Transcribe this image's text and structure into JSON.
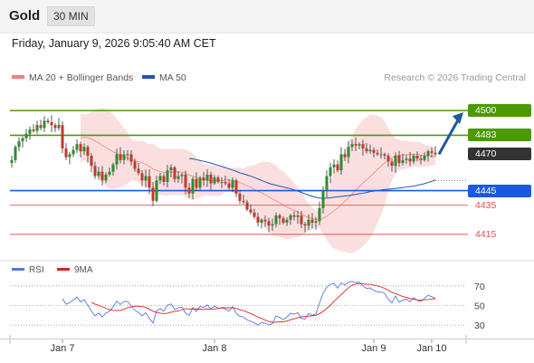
{
  "header": {
    "symbol": "Gold",
    "timeframe": "30 MIN"
  },
  "timestamp": "Friday, January 9, 2026 9:05:40 AM CET",
  "legend": {
    "bollinger_label": "MA 20 + Bollinger Bands",
    "ma50_label": "MA 50",
    "bollinger_color": "#f08080",
    "ma50_color": "#2255aa"
  },
  "attribution": "Research © 2026 Trading Central",
  "rsi_legend": {
    "rsi_label": "RSI",
    "ma_label": "9MA",
    "rsi_color": "#5577dd",
    "ma_color": "#dd2222"
  },
  "colors": {
    "bull": "#2e8b2e",
    "bear": "#c0392b",
    "resistance": "#4a9a00",
    "support": "#1a5adc",
    "minor": "#e05050",
    "target_arrow": "#1f5a99",
    "pivot": "#333333"
  },
  "chart_data": [
    {
      "type": "candlestick",
      "title": "Gold",
      "x_labels": [
        "Jan 7",
        "Jan 8",
        "Jan 9",
        "Jan 10"
      ],
      "ylim": [
        4400,
        4515
      ],
      "levels": [
        {
          "value": 4500,
          "label": "4500",
          "kind": "resistance"
        },
        {
          "value": 4483,
          "label": "4483",
          "kind": "resistance"
        },
        {
          "value": 4470,
          "label": "4470",
          "kind": "pivot"
        },
        {
          "value": 4445,
          "label": "4445",
          "kind": "support"
        },
        {
          "value": 4435,
          "label": "4435",
          "kind": "minor"
        },
        {
          "value": 4415,
          "label": "4415",
          "kind": "minor"
        }
      ],
      "target_arrow": {
        "from": 4470,
        "to": 4500
      },
      "close_series": [
        4466,
        4475,
        4479,
        4481,
        4484,
        4487,
        4486,
        4490,
        4488,
        4493,
        4492,
        4490,
        4488,
        4490,
        4474,
        4468,
        4470,
        4473,
        4477,
        4472,
        4475,
        4469,
        4462,
        4455,
        4458,
        4452,
        4456,
        4458,
        4463,
        4470,
        4466,
        4470,
        4470,
        4465,
        4460,
        4457,
        4452,
        4455,
        4447,
        4438,
        4452,
        4455,
        4451,
        4459,
        4461,
        4453,
        4455,
        4456,
        4447,
        4443,
        4453,
        4447,
        4454,
        4452,
        4456,
        4450,
        4454,
        4451,
        4451,
        4450,
        4447,
        4452,
        4443,
        4438,
        4437,
        4432,
        4430,
        4427,
        4423,
        4425,
        4424,
        4421,
        4422,
        4428,
        4426,
        4423,
        4425,
        4428,
        4427,
        4428,
        4422,
        4421,
        4425,
        4423,
        4424,
        4433,
        4445,
        4455,
        4461,
        4463,
        4459,
        4470,
        4468,
        4475,
        4477,
        4476,
        4477,
        4474,
        4472,
        4473,
        4471,
        4470,
        4470,
        4469,
        4465,
        4462,
        4469,
        4464,
        4466,
        4467,
        4465,
        4469,
        4467,
        4466,
        4469,
        4472,
        4471,
        4470
      ],
      "bollinger": {
        "period": 20,
        "std": 2
      },
      "ma50": {
        "period": 50
      }
    },
    {
      "type": "line",
      "title": "RSI",
      "ylim": [
        20,
        80
      ],
      "yticks": [
        70,
        50,
        30
      ],
      "series": [
        {
          "name": "RSI"
        },
        {
          "name": "9MA"
        }
      ]
    }
  ]
}
